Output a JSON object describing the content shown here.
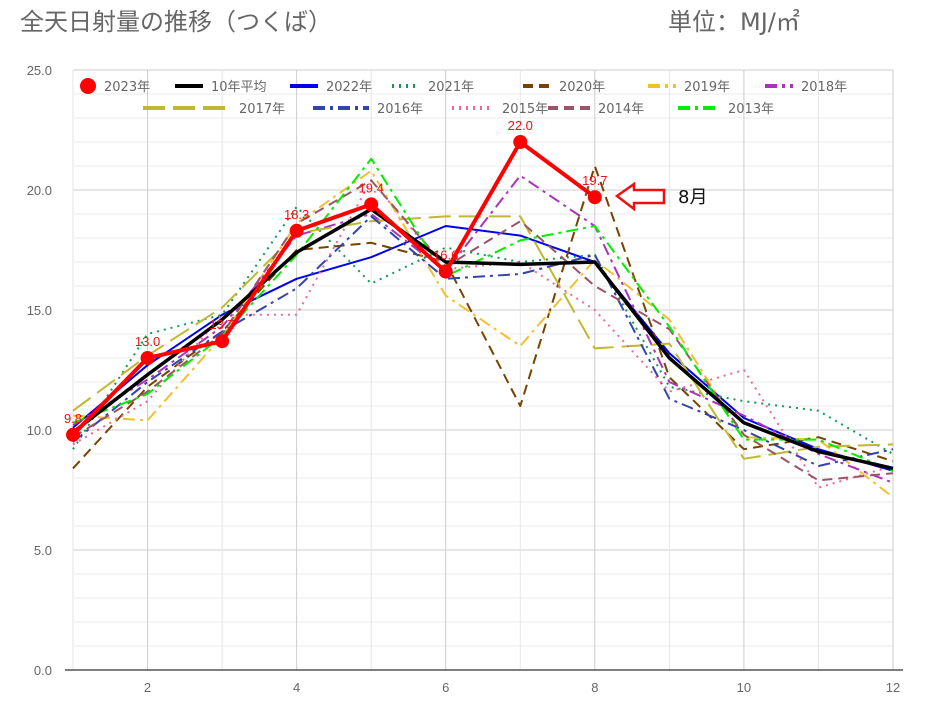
{
  "chart_data": {
    "type": "line",
    "title": "全天日射量の推移（つくば）",
    "unit_label": "単位：MJ/㎡",
    "x": [
      1,
      2,
      3,
      4,
      5,
      6,
      7,
      8,
      9,
      10,
      11,
      12
    ],
    "xticks": [
      "2",
      "4",
      "6",
      "8",
      "10",
      "12"
    ],
    "xtick_values": [
      2,
      4,
      6,
      8,
      10,
      12
    ],
    "ylim": [
      0,
      25
    ],
    "yticks": [
      "0.0",
      "5.0",
      "10.0",
      "15.0",
      "20.0",
      "25.0"
    ],
    "ytick_values": [
      0,
      5,
      10,
      15,
      20,
      25
    ],
    "grid": true,
    "legend_position": "top",
    "series": [
      {
        "name": "2023年",
        "color": "#ff0000",
        "dash": "solid",
        "values": [
          9.8,
          13.0,
          13.7,
          18.3,
          19.4,
          16.6,
          22.0,
          19.7,
          null,
          null,
          null,
          null
        ],
        "data_labels": [
          "9.8",
          "13.0",
          "13.7",
          "18.3",
          "19.4",
          "16.6",
          "22.0",
          "19.7"
        ]
      },
      {
        "name": "10年平均",
        "color": "#000000",
        "dash": "solid",
        "values": [
          9.9,
          12.3,
          14.6,
          17.4,
          19.2,
          17.0,
          16.9,
          17.0,
          13.0,
          10.3,
          9.1,
          8.4
        ]
      },
      {
        "name": "2022年",
        "color": "#0000ee",
        "dash": "solid",
        "values": [
          10.1,
          12.7,
          14.8,
          16.3,
          17.2,
          18.5,
          18.1,
          17.0,
          13.2,
          10.5,
          9.2,
          8.3
        ]
      },
      {
        "name": "2021年",
        "color": "#119955",
        "dash": "dot",
        "values": [
          9.2,
          14.0,
          14.8,
          19.3,
          16.1,
          17.6,
          17.0,
          17.3,
          11.8,
          11.2,
          10.8,
          9.0
        ]
      },
      {
        "name": "2020年",
        "color": "#774400",
        "dash": "dash",
        "values": [
          8.4,
          11.8,
          14.1,
          17.5,
          17.8,
          17.0,
          11.0,
          21.0,
          12.2,
          9.2,
          9.7,
          8.7
        ]
      },
      {
        "name": "2019年",
        "color": "#f0c030",
        "dash": "dashdot",
        "values": [
          10.6,
          10.4,
          13.9,
          18.6,
          20.8,
          15.6,
          13.5,
          17.1,
          14.6,
          9.7,
          9.6,
          7.2
        ]
      },
      {
        "name": "2018年",
        "color": "#aa33bb",
        "dash": "dashdot",
        "values": [
          10.2,
          12.1,
          14.3,
          18.1,
          19.0,
          16.6,
          20.6,
          18.5,
          12.0,
          10.6,
          9.0,
          7.8
        ]
      },
      {
        "name": "2017年",
        "color": "#c0b830",
        "dash": "longdash",
        "values": [
          10.8,
          13.1,
          15.1,
          18.2,
          18.7,
          18.9,
          18.9,
          13.4,
          13.6,
          8.8,
          9.3,
          9.4
        ]
      },
      {
        "name": "2016年",
        "color": "#3344aa",
        "dash": "dashdot",
        "values": [
          9.5,
          12.0,
          14.1,
          15.9,
          18.9,
          16.3,
          16.5,
          17.3,
          11.3,
          10.0,
          8.5,
          9.2
        ]
      },
      {
        "name": "2015年",
        "color": "#ee6699",
        "dash": "dot",
        "values": [
          9.4,
          11.2,
          14.8,
          14.8,
          20.4,
          16.7,
          17.0,
          15.0,
          11.6,
          12.5,
          7.6,
          8.5
        ]
      },
      {
        "name": "2014年",
        "color": "#995566",
        "dash": "dash",
        "values": [
          9.7,
          11.6,
          14.0,
          18.6,
          20.4,
          16.8,
          18.7,
          16.0,
          14.2,
          9.8,
          7.9,
          8.2
        ]
      },
      {
        "name": "2013年",
        "color": "#00ee00",
        "dash": "dashdot",
        "values": [
          10.3,
          11.5,
          13.9,
          17.3,
          21.3,
          16.4,
          17.9,
          18.5,
          14.3,
          9.6,
          9.6,
          8.3
        ]
      }
    ],
    "annotation": {
      "text": "8月",
      "target_x": 8,
      "target_y": 19.7
    }
  }
}
